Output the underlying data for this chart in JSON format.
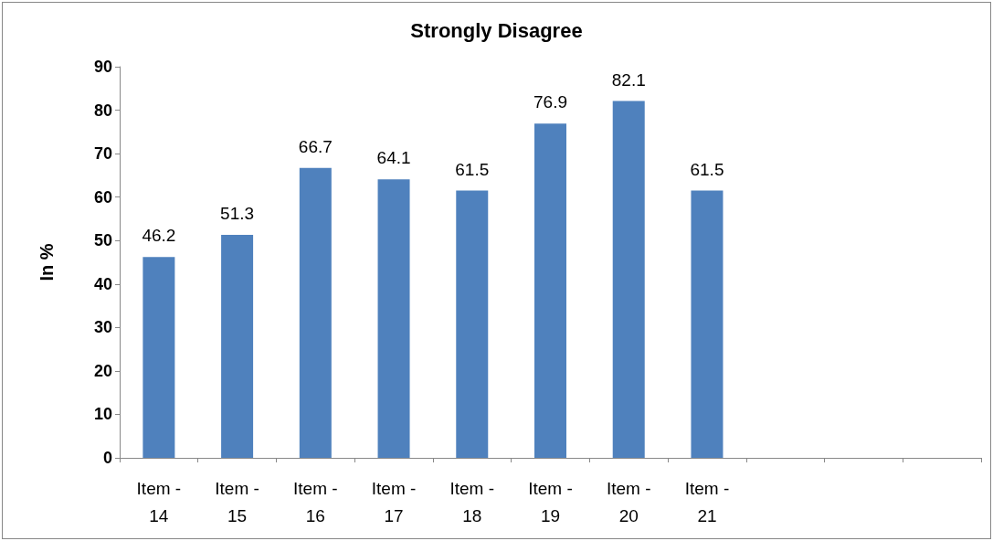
{
  "chart_data": {
    "type": "bar",
    "title": "Strongly Disagree",
    "ylabel": "In %",
    "categories": [
      "Item - 14",
      "Item - 15",
      "Item - 16",
      "Item - 17",
      "Item - 18",
      "Item - 19",
      "Item - 20",
      "Item - 21",
      null,
      null,
      null
    ],
    "values": [
      46.2,
      51.3,
      66.7,
      64.1,
      61.5,
      76.9,
      82.1,
      61.5,
      null,
      null,
      null
    ],
    "color": "#4f81bd",
    "ylim": [
      0,
      90
    ],
    "yticks": [
      0,
      10,
      20,
      30,
      40,
      50,
      60,
      70,
      80,
      90
    ],
    "data_labels": true
  }
}
